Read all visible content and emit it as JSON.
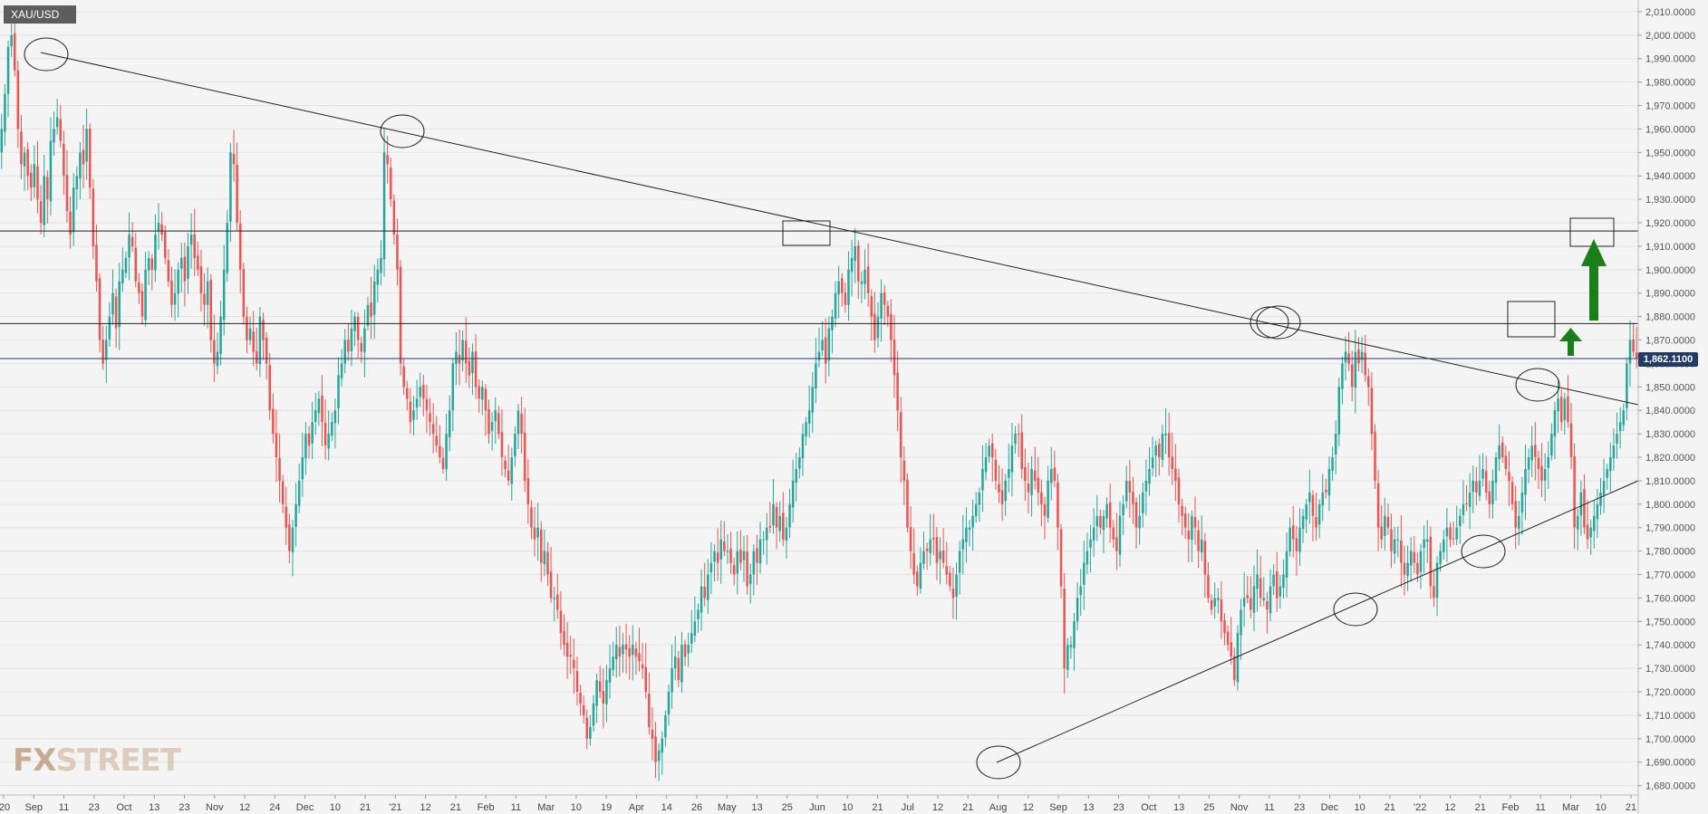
{
  "symbol": "XAU/USD",
  "logo": {
    "fx": "FX",
    "street": "STREET"
  },
  "current_price_label": "1,862.1100",
  "colors": {
    "up": "#26a69a",
    "down": "#ef5350",
    "arrow": "#1a7f1a",
    "price_line": "#1f3b66"
  },
  "chart_data": {
    "type": "candlestick",
    "ylim": [
      1676,
      2015
    ],
    "y_ticks": [
      "1,680.0000",
      "1,690.0000",
      "1,700.0000",
      "1,710.0000",
      "1,720.0000",
      "1,730.0000",
      "1,740.0000",
      "1,750.0000",
      "1,760.0000",
      "1,770.0000",
      "1,780.0000",
      "1,790.0000",
      "1,800.0000",
      "1,810.0000",
      "1,820.0000",
      "1,830.0000",
      "1,840.0000",
      "1,850.0000",
      "1,860.0000",
      "1,870.0000",
      "1,880.0000",
      "1,890.0000",
      "1,900.0000",
      "1,910.0000",
      "1,920.0000",
      "1,930.0000",
      "1,940.0000",
      "1,950.0000",
      "1,960.0000",
      "1,970.0000",
      "1,980.0000",
      "1,990.0000",
      "2,000.0000",
      "2,010.0000"
    ],
    "x_tick_labels": [
      "'20",
      "Sep",
      "11",
      "23",
      "Oct",
      "13",
      "23",
      "Nov",
      "12",
      "24",
      "Dec",
      "10",
      "21",
      "'21",
      "12",
      "21",
      "Feb",
      "11",
      "Mar",
      "10",
      "19",
      "Apr",
      "14",
      "26",
      "May",
      "13",
      "25",
      "Jun",
      "10",
      "21",
      "Jul",
      "12",
      "21",
      "Aug",
      "12",
      "Sep",
      "13",
      "23",
      "Oct",
      "13",
      "25",
      "Nov",
      "11",
      "23",
      "Dec",
      "10",
      "21",
      "'22",
      "12",
      "21",
      "Feb",
      "11",
      "Mar",
      "10",
      "21"
    ],
    "current_price": 1862.11,
    "horizontal_levels": [
      1916.5,
      1877
    ],
    "closes": [
      1960,
      1975,
      1995,
      2000,
      1985,
      1960,
      1945,
      1950,
      1940,
      1935,
      1945,
      1930,
      1920,
      1940,
      1930,
      1955,
      1960,
      1965,
      1955,
      1940,
      1925,
      1915,
      1935,
      1940,
      1950,
      1945,
      1960,
      1935,
      1910,
      1895,
      1870,
      1860,
      1870,
      1880,
      1890,
      1875,
      1895,
      1900,
      1905,
      1915,
      1910,
      1895,
      1890,
      1880,
      1900,
      1905,
      1900,
      1915,
      1920,
      1915,
      1905,
      1895,
      1885,
      1890,
      1900,
      1905,
      1895,
      1910,
      1915,
      1905,
      1900,
      1890,
      1885,
      1895,
      1870,
      1860,
      1865,
      1880,
      1900,
      1920,
      1950,
      1945,
      1920,
      1900,
      1880,
      1870,
      1875,
      1865,
      1860,
      1880,
      1870,
      1860,
      1840,
      1830,
      1820,
      1810,
      1800,
      1790,
      1780,
      1790,
      1800,
      1810,
      1820,
      1830,
      1825,
      1835,
      1840,
      1845,
      1835,
      1825,
      1830,
      1835,
      1840,
      1855,
      1860,
      1870,
      1865,
      1875,
      1880,
      1870,
      1865,
      1875,
      1885,
      1880,
      1895,
      1900,
      1905,
      1950,
      1945,
      1930,
      1915,
      1900,
      1860,
      1850,
      1845,
      1835,
      1840,
      1845,
      1850,
      1845,
      1840,
      1835,
      1830,
      1825,
      1820,
      1815,
      1830,
      1840,
      1860,
      1865,
      1860,
      1870,
      1860,
      1855,
      1865,
      1850,
      1845,
      1850,
      1840,
      1830,
      1835,
      1840,
      1830,
      1820,
      1815,
      1810,
      1820,
      1830,
      1840,
      1830,
      1810,
      1800,
      1790,
      1785,
      1790,
      1775,
      1780,
      1770,
      1760,
      1760,
      1755,
      1745,
      1740,
      1735,
      1735,
      1730,
      1720,
      1715,
      1710,
      1700,
      1705,
      1715,
      1725,
      1720,
      1715,
      1725,
      1730,
      1735,
      1740,
      1735,
      1740,
      1738,
      1735,
      1740,
      1735,
      1733,
      1730,
      1720,
      1705,
      1700,
      1690,
      1695,
      1700,
      1710,
      1720,
      1730,
      1735,
      1725,
      1740,
      1735,
      1740,
      1745,
      1750,
      1755,
      1765,
      1760,
      1770,
      1775,
      1780,
      1775,
      1785,
      1780,
      1780,
      1775,
      1770,
      1780,
      1775,
      1780,
      1765,
      1770,
      1780,
      1775,
      1785,
      1785,
      1790,
      1790,
      1800,
      1790,
      1795,
      1785,
      1790,
      1800,
      1810,
      1815,
      1820,
      1830,
      1835,
      1840,
      1850,
      1860,
      1865,
      1870,
      1860,
      1875,
      1880,
      1890,
      1895,
      1890,
      1885,
      1900,
      1905,
      1910,
      1895,
      1895,
      1900,
      1890,
      1880,
      1870,
      1880,
      1890,
      1885,
      1880,
      1870,
      1855,
      1840,
      1820,
      1810,
      1790,
      1780,
      1770,
      1765,
      1775,
      1780,
      1780,
      1785,
      1785,
      1775,
      1780,
      1775,
      1770,
      1765,
      1760,
      1770,
      1780,
      1785,
      1790,
      1790,
      1795,
      1800,
      1805,
      1815,
      1820,
      1825,
      1820,
      1810,
      1805,
      1800,
      1810,
      1815,
      1825,
      1830,
      1830,
      1815,
      1810,
      1805,
      1815,
      1810,
      1805,
      1800,
      1795,
      1810,
      1815,
      1810,
      1790,
      1765,
      1730,
      1740,
      1740,
      1750,
      1760,
      1765,
      1775,
      1780,
      1785,
      1790,
      1795,
      1790,
      1795,
      1800,
      1790,
      1785,
      1780,
      1795,
      1800,
      1810,
      1805,
      1800,
      1790,
      1795,
      1805,
      1810,
      1815,
      1820,
      1825,
      1820,
      1830,
      1830,
      1820,
      1815,
      1810,
      1800,
      1795,
      1790,
      1785,
      1795,
      1790,
      1780,
      1785,
      1770,
      1760,
      1755,
      1760,
      1760,
      1750,
      1745,
      1740,
      1735,
      1725,
      1745,
      1755,
      1760,
      1760,
      1755,
      1765,
      1770,
      1760,
      1760,
      1755,
      1765,
      1770,
      1760,
      1765,
      1770,
      1780,
      1790,
      1785,
      1780,
      1790,
      1795,
      1800,
      1805,
      1795,
      1790,
      1800,
      1805,
      1805,
      1815,
      1820,
      1830,
      1850,
      1860,
      1865,
      1860,
      1850,
      1865,
      1860,
      1865,
      1855,
      1850,
      1830,
      1810,
      1790,
      1785,
      1795,
      1790,
      1780,
      1785,
      1785,
      1775,
      1770,
      1775,
      1780,
      1775,
      1770,
      1780,
      1785,
      1785,
      1765,
      1760,
      1775,
      1780,
      1785,
      1790,
      1785,
      1785,
      1790,
      1795,
      1800,
      1800,
      1805,
      1810,
      1805,
      1810,
      1815,
      1805,
      1800,
      1810,
      1820,
      1825,
      1820,
      1815,
      1810,
      1800,
      1790,
      1795,
      1805,
      1815,
      1820,
      1825,
      1820,
      1815,
      1810,
      1815,
      1820,
      1830,
      1840,
      1845,
      1835,
      1845,
      1835,
      1820,
      1790,
      1795,
      1805,
      1790,
      1785,
      1790,
      1795,
      1800,
      1805,
      1810,
      1815,
      1820,
      1825,
      1830,
      1835,
      1840,
      1860,
      1870,
      1865,
      1862
    ]
  }
}
